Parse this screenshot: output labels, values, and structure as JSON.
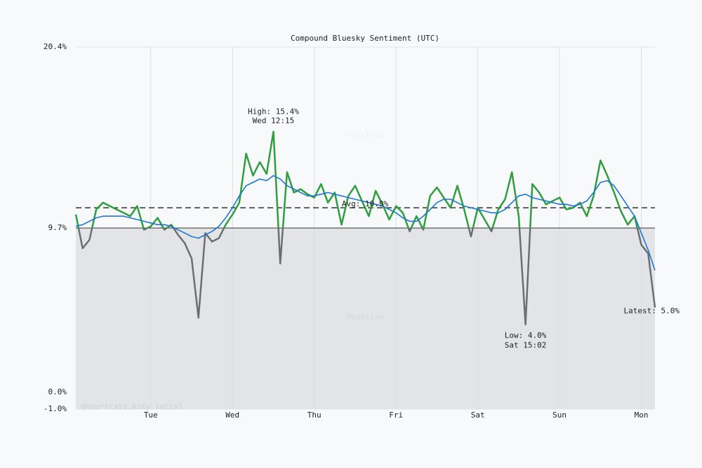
{
  "chart_data": {
    "type": "line",
    "title": "Compound Bluesky Sentiment (UTC)",
    "watermark": "@hourstats.bsky.social",
    "zone_labels": [
      "Positive",
      "Negative"
    ],
    "xlim": [
      0,
      85
    ],
    "xticks": [
      {
        "value": 11,
        "label": "Tue"
      },
      {
        "value": 23,
        "label": "Wed"
      },
      {
        "value": 35,
        "label": "Thu"
      },
      {
        "value": 47,
        "label": "Fri"
      },
      {
        "value": 59,
        "label": "Sat"
      },
      {
        "value": 71,
        "label": "Sun"
      },
      {
        "value": 83,
        "label": "Mon"
      }
    ],
    "ylim": [
      -1.0,
      20.4
    ],
    "yticks": [
      {
        "value": -1.0,
        "label": "-1.0%"
      },
      {
        "value": 0.0,
        "label": "0.0%"
      },
      {
        "value": 9.7,
        "label": "9.7%"
      },
      {
        "value": 20.4,
        "label": "20.4%"
      }
    ],
    "grid": true,
    "threshold": 9.7,
    "colors_below": "#6b6f73",
    "shade_color": "#e3e4e6",
    "series": [
      {
        "color": "#2e9e3e",
        "values": [
          10.5,
          8.5,
          9.0,
          10.8,
          11.2,
          11.0,
          10.8,
          10.6,
          10.4,
          11.0,
          9.6,
          9.8,
          10.3,
          9.6,
          9.9,
          9.3,
          8.8,
          7.9,
          4.4,
          9.4,
          8.9,
          9.1,
          9.9,
          10.5,
          11.2,
          14.1,
          12.8,
          13.6,
          12.9,
          15.4,
          7.6,
          13.0,
          11.8,
          12.0,
          11.7,
          11.5,
          12.3,
          11.2,
          11.8,
          9.9,
          11.6,
          12.2,
          11.3,
          10.4,
          11.9,
          11.1,
          10.2,
          11.0,
          10.6,
          9.5,
          10.4,
          9.6,
          11.6,
          12.1,
          11.5,
          10.9,
          12.2,
          10.8,
          9.2,
          10.9,
          10.2,
          9.5,
          10.8,
          11.4,
          13.0,
          10.4,
          4.0,
          12.3,
          11.8,
          11.1,
          11.3,
          11.5,
          10.8,
          10.9,
          11.2,
          10.4,
          11.6,
          13.7,
          12.8,
          11.8,
          10.7,
          9.9,
          10.4,
          8.7,
          8.2,
          5.0
        ]
      },
      {
        "color": "#1f77d4",
        "values": [
          9.8,
          9.9,
          10.1,
          10.3,
          10.4,
          10.4,
          10.4,
          10.4,
          10.3,
          10.2,
          10.1,
          10.0,
          9.9,
          9.9,
          9.8,
          9.6,
          9.4,
          9.2,
          9.1,
          9.3,
          9.5,
          9.8,
          10.3,
          10.9,
          11.6,
          12.2,
          12.4,
          12.6,
          12.5,
          12.8,
          12.6,
          12.2,
          12.0,
          11.8,
          11.6,
          11.6,
          11.7,
          11.8,
          11.7,
          11.6,
          11.5,
          11.4,
          11.3,
          11.2,
          11.1,
          11.0,
          10.8,
          10.6,
          10.3,
          10.1,
          10.1,
          10.4,
          10.8,
          11.2,
          11.4,
          11.4,
          11.2,
          11.0,
          10.9,
          10.8,
          10.7,
          10.6,
          10.6,
          10.8,
          11.2,
          11.6,
          11.7,
          11.5,
          11.4,
          11.3,
          11.2,
          11.1,
          11.1,
          11.0,
          11.1,
          11.3,
          11.8,
          12.4,
          12.5,
          12.2,
          11.6,
          11.0,
          10.4,
          9.4,
          8.4,
          7.2
        ]
      }
    ],
    "average": {
      "value": 10.9,
      "label": "Avg: 10.9%"
    },
    "high": {
      "value": 15.4,
      "label": "High: 15.4%",
      "time": "Wed 12:15"
    },
    "low": {
      "value": 4.0,
      "label": "Low: 4.0%",
      "time": "Sat 15:02"
    },
    "latest": {
      "value": 5.0,
      "label": "Latest: 5.0%"
    }
  }
}
